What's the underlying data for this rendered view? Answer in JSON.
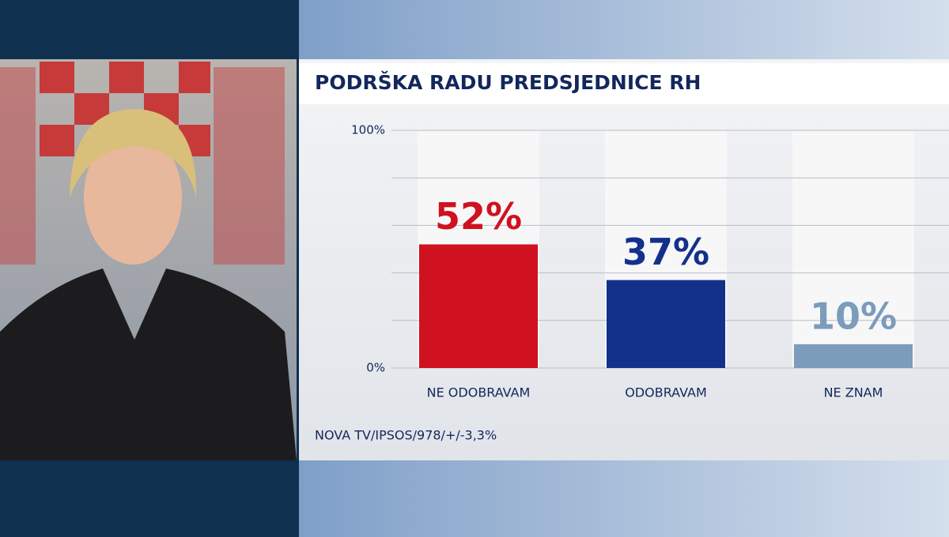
{
  "chart_data": {
    "type": "bar",
    "title": "PODRŠKA RADU PREDSJEDNICE RH",
    "categories": [
      "NE ODOBRAVAM",
      "ODOBRAVAM",
      "NE ZNAM"
    ],
    "values": [
      52,
      37,
      10
    ],
    "value_labels": [
      "52%",
      "37%",
      "10%"
    ],
    "colors": [
      "#d0111f",
      "#13318a",
      "#7b9cba"
    ],
    "ylim": [
      0,
      100
    ],
    "yticks": [
      {
        "value": 0,
        "label": "0%"
      },
      {
        "value": 20,
        "label": null
      },
      {
        "value": 40,
        "label": null
      },
      {
        "value": 60,
        "label": null
      },
      {
        "value": 80,
        "label": null
      },
      {
        "value": 100,
        "label": "100%"
      }
    ],
    "grid": true,
    "source": "NOVA TV/IPSOS/978/+/-3,3%"
  }
}
